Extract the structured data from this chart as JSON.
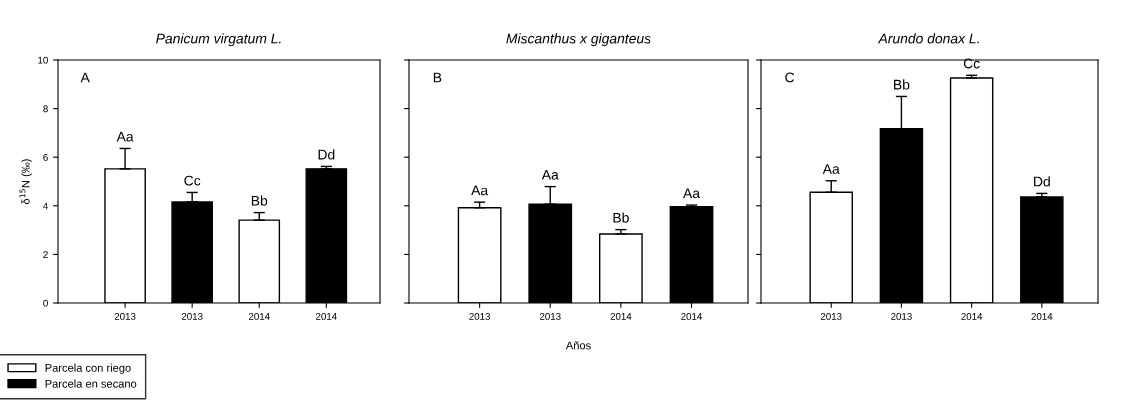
{
  "chart_data": [
    {
      "type": "bar",
      "title": "Panicum virgatum L.",
      "ylabel": "δ$^{15}$N (‰)",
      "annotations": [
        "A"
      ],
      "categories": [
        "2013",
        "2013",
        "2014",
        "2014"
      ],
      "ylim": [
        0,
        10
      ],
      "yticks": [
        0,
        2,
        4,
        6,
        8,
        10
      ],
      "grid": false,
      "legend": "bottom left",
      "series": [
        {
          "name": "Parcela con riego",
          "color": "#ffffff",
          "values": [
            5.52,
            null,
            3.41,
            null
          ],
          "errors": [
            [
              5.52,
              6.36
            ],
            null,
            [
              3.41,
              3.72
            ],
            null
          ],
          "value_labels": [
            "Aa",
            null,
            "Bb",
            null
          ]
        },
        {
          "name": "Parcela en secano",
          "color": "#000000",
          "values": [
            null,
            4.16,
            null,
            5.52
          ],
          "errors": [
            null,
            [
              4.16,
              4.55
            ],
            null,
            [
              5.52,
              5.62
            ]
          ],
          "value_labels": [
            null,
            "Cc",
            null,
            "Dd"
          ]
        }
      ]
    },
    {
      "type": "bar",
      "title": "Miscanthus x giganteus",
      "xlabel": "Años",
      "annotations": [
        "B"
      ],
      "categories": [
        "2013",
        "2013",
        "2014",
        "2014"
      ],
      "ylim": [
        0,
        10
      ],
      "yticks": [
        0,
        2,
        4,
        6,
        8,
        10
      ],
      "tick_labels": "x",
      "grid": false,
      "series": [
        {
          "color": "#ffffff",
          "values": [
            3.92,
            null,
            2.84,
            null
          ],
          "errors": [
            [
              3.92,
              4.15
            ],
            null,
            [
              2.84,
              3.02
            ],
            null
          ],
          "value_labels": [
            "Aa",
            null,
            "Bb",
            null
          ]
        },
        {
          "color": "#000000",
          "values": [
            null,
            4.07,
            null,
            3.96
          ],
          "errors": [
            null,
            [
              4.07,
              4.79
            ],
            null,
            [
              3.96,
              4.03
            ]
          ],
          "value_labels": [
            null,
            "Aa",
            null,
            "Aa"
          ]
        }
      ]
    },
    {
      "type": "bar",
      "title": "Arundo donax L.",
      "annotations": [
        "C"
      ],
      "categories": [
        "2013",
        "2013",
        "2014",
        "2014"
      ],
      "ylim": [
        0,
        10
      ],
      "yticks": [
        0,
        2,
        4,
        6,
        8,
        10
      ],
      "tick_labels": "x",
      "grid": false,
      "series": [
        {
          "color": "#ffffff",
          "values": [
            4.56,
            null,
            9.26,
            null
          ],
          "errors": [
            [
              4.56,
              5.03
            ],
            null,
            [
              9.26,
              9.37
            ],
            null
          ],
          "value_labels": [
            "Aa",
            null,
            "Cc",
            null
          ]
        },
        {
          "color": "#000000",
          "values": [
            null,
            7.17,
            null,
            4.36
          ],
          "errors": [
            null,
            [
              7.17,
              8.5
            ],
            null,
            [
              4.36,
              4.51
            ]
          ],
          "value_labels": [
            null,
            "Bb",
            null,
            "Dd"
          ]
        }
      ]
    }
  ]
}
